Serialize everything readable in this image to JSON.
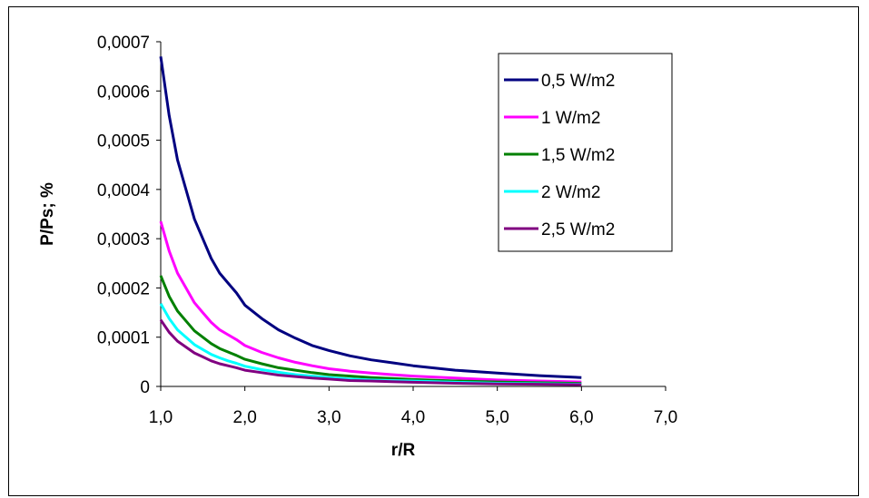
{
  "chart_data": {
    "type": "line",
    "title": "",
    "xlabel": "r/R",
    "ylabel": "P/Ps; %",
    "xlim": [
      1.0,
      7.0
    ],
    "ylim": [
      0,
      0.0007
    ],
    "x_ticks": [
      "1,0",
      "2,0",
      "3,0",
      "4,0",
      "5,0",
      "6,0",
      "7,0"
    ],
    "x_tick_values": [
      1,
      2,
      3,
      4,
      5,
      6,
      7
    ],
    "y_ticks": [
      "0",
      "0,0001",
      "0,0002",
      "0,0003",
      "0,0004",
      "0,0005",
      "0,0006",
      "0,0007"
    ],
    "y_tick_values": [
      0,
      0.0001,
      0.0002,
      0.0003,
      0.0004,
      0.0005,
      0.0006,
      0.0007
    ],
    "grid": false,
    "legend_position": "right",
    "x": [
      1.0,
      1.1,
      1.2,
      1.3,
      1.4,
      1.5,
      1.6,
      1.7,
      1.8,
      1.9,
      2.0,
      2.2,
      2.4,
      2.6,
      2.8,
      3.0,
      3.25,
      3.5,
      3.75,
      4.0,
      4.5,
      5.0,
      5.5,
      6.0
    ],
    "series": [
      {
        "name": "0,5 W/m2",
        "color": "#000080",
        "values": [
          0.00067,
          0.00055,
          0.00046,
          0.0004,
          0.00034,
          0.0003,
          0.00026,
          0.00023,
          0.00021,
          0.00019,
          0.000165,
          0.000138,
          0.000115,
          9.8e-05,
          8.3e-05,
          7.3e-05,
          6.2e-05,
          5.4e-05,
          4.8e-05,
          4.2e-05,
          3.3e-05,
          2.7e-05,
          2.2e-05,
          1.8e-05
        ]
      },
      {
        "name": "1 W/m2",
        "color": "#ff00ff",
        "values": [
          0.000335,
          0.000275,
          0.00023,
          0.0002,
          0.00017,
          0.00015,
          0.00013,
          0.000115,
          0.000105,
          9.5e-05,
          8.3e-05,
          6.9e-05,
          5.8e-05,
          4.9e-05,
          4.2e-05,
          3.6e-05,
          3.1e-05,
          2.7e-05,
          2.4e-05,
          2.1e-05,
          1.7e-05,
          1.3e-05,
          1.1e-05,
          9e-06
        ]
      },
      {
        "name": "1,5 W/m2",
        "color": "#008000",
        "values": [
          0.000225,
          0.000183,
          0.000153,
          0.000133,
          0.000113,
          0.0001,
          8.7e-05,
          7.7e-05,
          7e-05,
          6.3e-05,
          5.5e-05,
          4.6e-05,
          3.8e-05,
          3.3e-05,
          2.8e-05,
          2.4e-05,
          2.1e-05,
          1.8e-05,
          1.6e-05,
          1.4e-05,
          1.1e-05,
          9e-06,
          7.5e-06,
          6e-06
        ]
      },
      {
        "name": "2 W/m2",
        "color": "#00ffff",
        "values": [
          0.000168,
          0.000138,
          0.000115,
          0.0001,
          8.5e-05,
          7.5e-05,
          6.5e-05,
          5.8e-05,
          5.2e-05,
          4.7e-05,
          4.1e-05,
          3.4e-05,
          2.9e-05,
          2.4e-05,
          2.1e-05,
          1.8e-05,
          1.5e-05,
          1.3e-05,
          1.2e-05,
          1.1e-05,
          8.5e-06,
          6.5e-06,
          5.5e-06,
          4.5e-06
        ]
      },
      {
        "name": "2,5 W/m2",
        "color": "#800080",
        "values": [
          0.000135,
          0.00011,
          9.2e-05,
          8e-05,
          6.8e-05,
          6e-05,
          5.2e-05,
          4.6e-05,
          4.2e-05,
          3.8e-05,
          3.3e-05,
          2.8e-05,
          2.3e-05,
          2e-05,
          1.7e-05,
          1.5e-05,
          1.2e-05,
          1.1e-05,
          9.5e-06,
          8.5e-06,
          6.5e-06,
          5e-06,
          4.5e-06,
          3.5e-06
        ]
      }
    ]
  }
}
